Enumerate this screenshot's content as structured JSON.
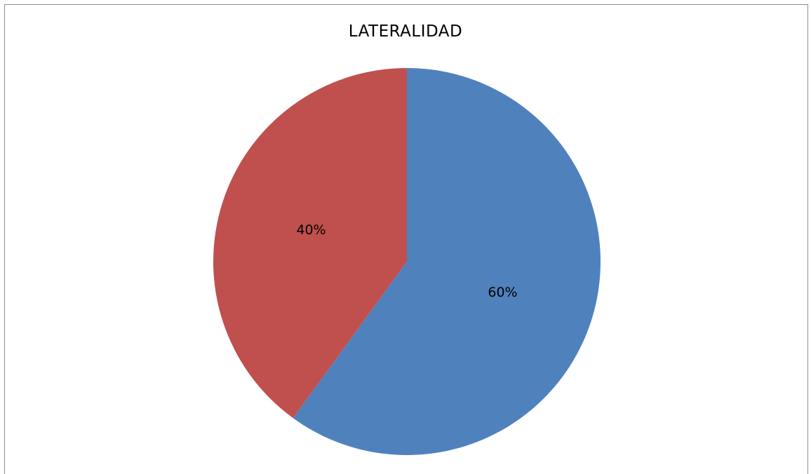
{
  "chart_data": {
    "type": "pie",
    "title": "LATERALIDAD",
    "slices": [
      {
        "value": 60,
        "label": "60%",
        "color": "#4F81BD"
      },
      {
        "value": 40,
        "label": "40%",
        "color": "#C0504D"
      }
    ],
    "start_angle_deg": 0,
    "direction": "clockwise"
  }
}
